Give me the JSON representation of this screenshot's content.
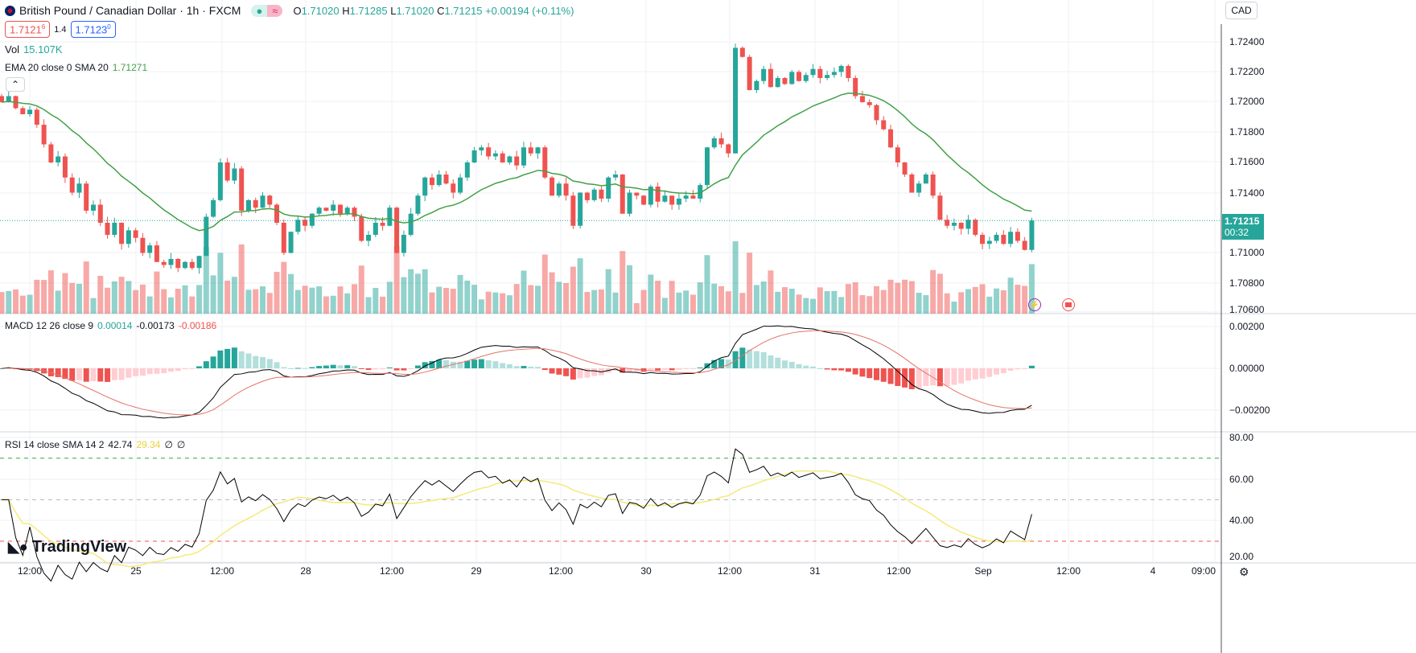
{
  "header": {
    "title": "British Pound / Canadian Dollar · 1h · FXCM",
    "open_label": "O",
    "open": "1.71020",
    "high_label": "H",
    "high": "1.71285",
    "low_label": "L",
    "low": "1.71020",
    "close_label": "C",
    "close": "1.71215",
    "change": "+0.00194 (+0.11%)",
    "sell_price": "1.7121",
    "sell_sup": "6",
    "spread": "1.4",
    "buy_price": "1.7123",
    "buy_sup": "0"
  },
  "indicators": {
    "vol_label": "Vol",
    "vol_value": "15.107K",
    "ema_label": "EMA 20 close 0 SMA 20",
    "ema_value": "1.71271",
    "macd_label": "MACD 12 26 close 9",
    "macd_hist": "0.00014",
    "macd_line": "-0.00173",
    "macd_signal": "-0.00186",
    "rsi_label": "RSI 14 close SMA 14 2",
    "rsi_value": "42.74",
    "rsi_sma": "29.34",
    "rsi_extra1": "∅",
    "rsi_extra2": "∅"
  },
  "currency_select": "CAD",
  "logo": "TradingView",
  "price_axis": [
    "1.72400",
    "1.72200",
    "1.72000",
    "1.71800",
    "1.71600",
    "1.71400",
    "1.71000",
    "1.70800",
    "1.70600"
  ],
  "last_price": "1.71215",
  "countdown": "00:32",
  "macd_axis": [
    "0.00200",
    "0.00000",
    "−0.00200"
  ],
  "rsi_axis": [
    "80.00",
    "60.00",
    "40.00",
    "20.00"
  ],
  "time_axis": [
    "12:00",
    "25",
    "12:00",
    "28",
    "12:00",
    "29",
    "12:00",
    "30",
    "12:00",
    "31",
    "12:00",
    "Sep",
    "12:00",
    "4",
    "09:00"
  ],
  "colors": {
    "up": "#26a69a",
    "down": "#ef5350",
    "ema": "#43a047",
    "macd": "#000000",
    "signal": "#e57368",
    "rsi": "#000000",
    "rsi_sma": "#f5e97a"
  },
  "chart_data": {
    "type": "candlestick",
    "symbol": "GBPCAD",
    "interval": "1h",
    "last_open": 1.7102,
    "closes": [
      1.72,
      1.7204,
      1.7196,
      1.7192,
      1.7195,
      1.7185,
      1.7172,
      1.716,
      1.7164,
      1.715,
      1.714,
      1.7146,
      1.7128,
      1.7132,
      1.712,
      1.7112,
      1.712,
      1.7106,
      1.7115,
      1.711,
      1.71,
      1.7105,
      1.7094,
      1.7092,
      1.7096,
      1.709,
      1.7094,
      1.709,
      1.7098,
      1.7124,
      1.7135,
      1.716,
      1.7148,
      1.7156,
      1.7128,
      1.7135,
      1.713,
      1.7138,
      1.7132,
      1.712,
      1.71,
      1.7114,
      1.7122,
      1.7118,
      1.7126,
      1.713,
      1.7128,
      1.7132,
      1.7126,
      1.713,
      1.7124,
      1.7108,
      1.7112,
      1.712,
      1.7118,
      1.713,
      1.71,
      1.7112,
      1.7126,
      1.7138,
      1.715,
      1.7145,
      1.7152,
      1.7146,
      1.714,
      1.715,
      1.716,
      1.7168,
      1.717,
      1.7164,
      1.7166,
      1.716,
      1.7164,
      1.7158,
      1.717,
      1.7166,
      1.717,
      1.715,
      1.7138,
      1.7146,
      1.7138,
      1.7118,
      1.714,
      1.7135,
      1.7142,
      1.7136,
      1.715,
      1.7152,
      1.7126,
      1.714,
      1.7138,
      1.7132,
      1.7144,
      1.7134,
      1.7138,
      1.7132,
      1.7136,
      1.7138,
      1.7136,
      1.7145,
      1.717,
      1.7176,
      1.7172,
      1.7166,
      1.7236,
      1.723,
      1.7208,
      1.7214,
      1.7222,
      1.721,
      1.7216,
      1.7212,
      1.722,
      1.7214,
      1.7218,
      1.7222,
      1.7216,
      1.7218,
      1.722,
      1.7224,
      1.7216,
      1.7204,
      1.72,
      1.7198,
      1.7188,
      1.7182,
      1.717,
      1.716,
      1.7152,
      1.714,
      1.7146,
      1.7152,
      1.7138,
      1.7122,
      1.7118,
      1.712,
      1.7116,
      1.7122,
      1.7112,
      1.7106,
      1.7108,
      1.7112,
      1.7106,
      1.7114,
      1.7108,
      1.7102,
      1.71215
    ],
    "price_range": [
      1.706,
      1.725
    ],
    "macd_range": [
      -0.0025,
      0.0025
    ],
    "rsi_range": [
      20,
      80
    ],
    "rsi_levels": [
      70,
      50,
      30
    ]
  }
}
